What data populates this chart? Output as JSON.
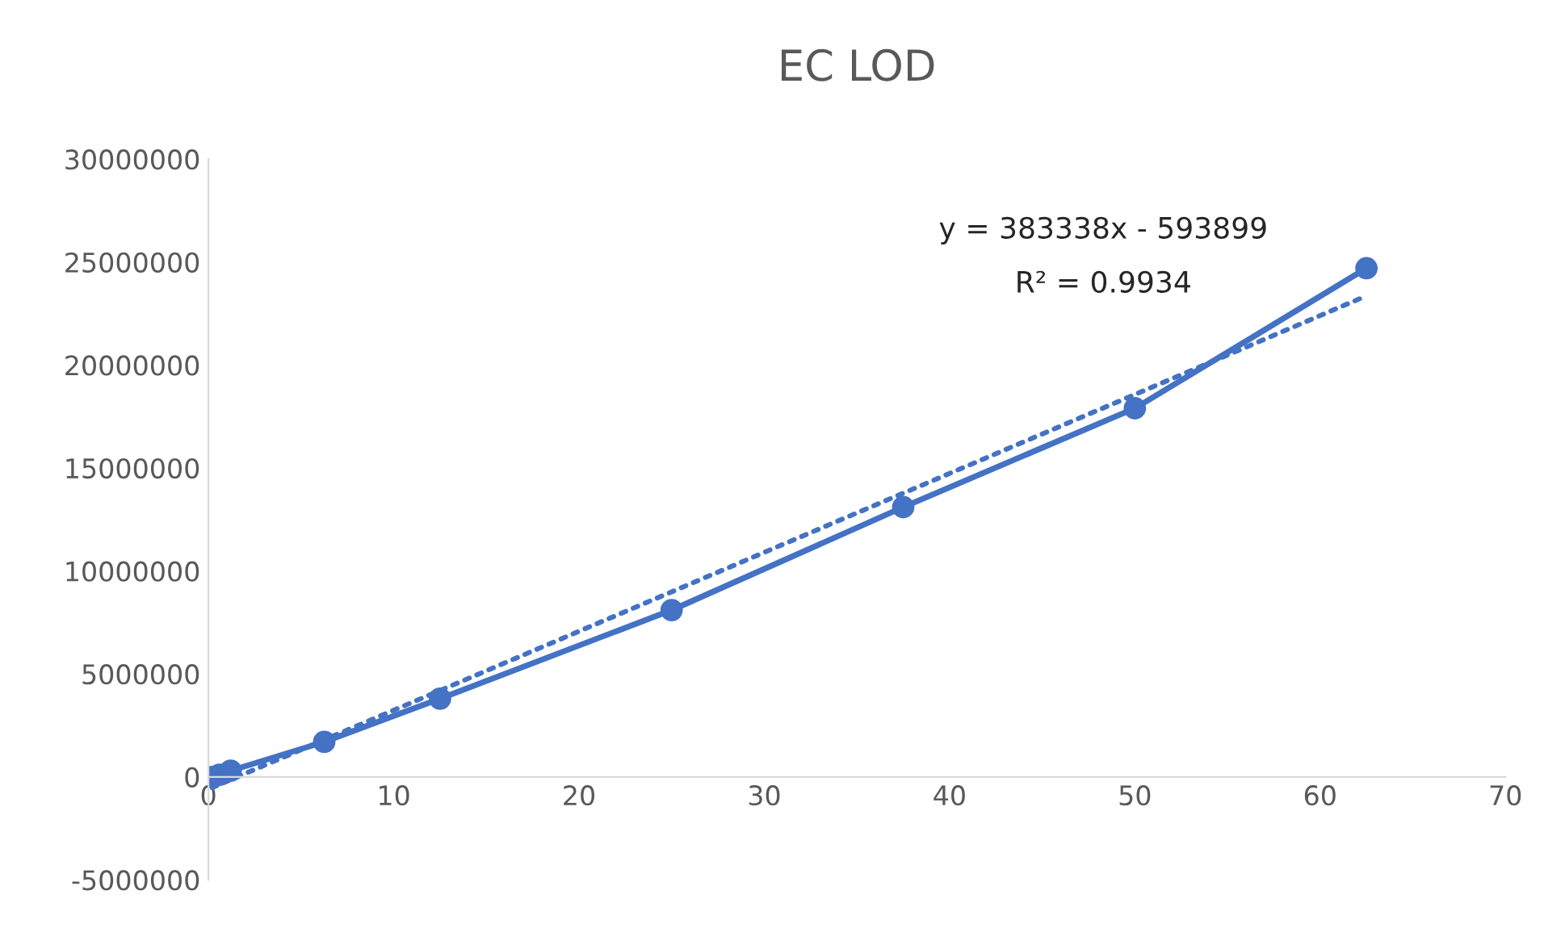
{
  "chart_data": {
    "type": "line",
    "title": "EC LOD",
    "series": [
      {
        "color": "#4472c4",
        "marker": "circle",
        "line_style": "solid",
        "x": [
          0.2,
          0.6,
          1.2,
          6.25,
          12.5,
          25,
          37.5,
          50,
          62.5
        ],
        "values": [
          0,
          100000,
          300000,
          1700000,
          3800000,
          8100000,
          13100000,
          17900000,
          24700000
        ]
      },
      {
        "color": "#4472c4",
        "marker": "none",
        "line_style": "dotted",
        "x": [
          0.2,
          62.5
        ],
        "values": [
          -520000,
          23360000
        ]
      }
    ],
    "xlim": [
      0,
      70
    ],
    "xticks": [
      0,
      10,
      20,
      30,
      40,
      50,
      60,
      70
    ],
    "ylim": [
      -5000000,
      30000000
    ],
    "yticks": [
      -5000000,
      0,
      5000000,
      10000000,
      15000000,
      20000000,
      25000000,
      30000000
    ],
    "annotations": [
      "y = 383338x - 593899",
      "R² = 0.9934"
    ],
    "grid": false,
    "legend": false
  }
}
